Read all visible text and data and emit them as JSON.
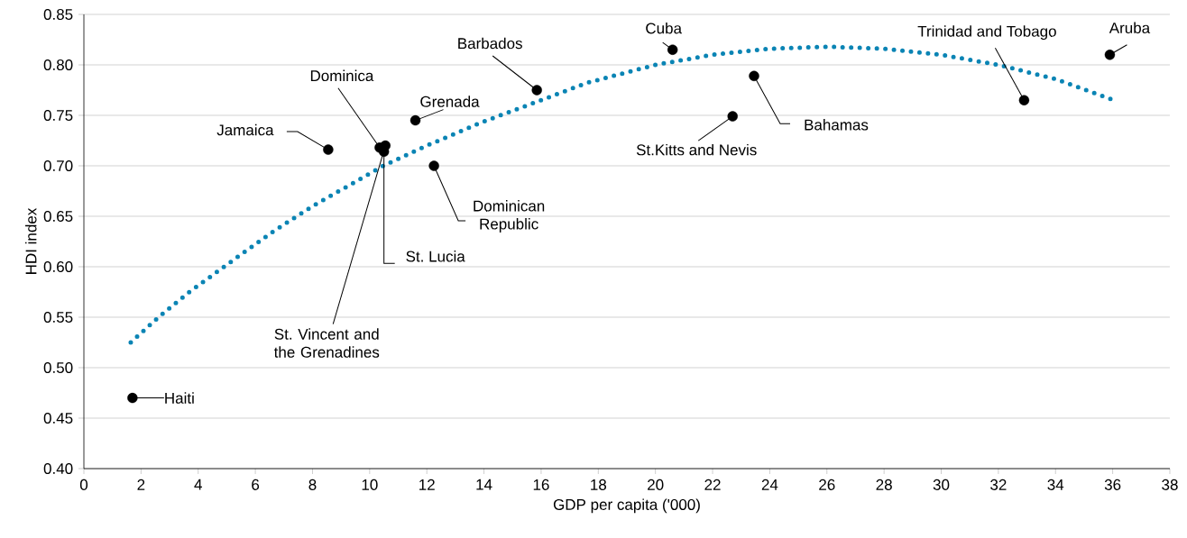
{
  "chart_data": {
    "type": "scatter",
    "xlabel": "GDP per capita ('000)",
    "ylabel": "HDI index",
    "xlim": [
      0,
      38
    ],
    "ylim": [
      0.4,
      0.85
    ],
    "xticks": [
      0,
      2,
      4,
      6,
      8,
      10,
      12,
      14,
      16,
      18,
      20,
      22,
      24,
      26,
      28,
      30,
      32,
      34,
      36,
      38
    ],
    "yticks": [
      {
        "value": 0.4,
        "label": "0.40"
      },
      {
        "value": 0.45,
        "label": "0.45"
      },
      {
        "value": 0.5,
        "label": "0.50"
      },
      {
        "value": 0.55,
        "label": "0.55"
      },
      {
        "value": 0.6,
        "label": "0.60"
      },
      {
        "value": 0.65,
        "label": "0.65"
      },
      {
        "value": 0.7,
        "label": "0.70"
      },
      {
        "value": 0.75,
        "label": "0.75"
      },
      {
        "value": 0.8,
        "label": "0.80"
      },
      {
        "value": 0.85,
        "label": "0.85"
      }
    ],
    "grid": "y",
    "series": [
      {
        "type": "scatter",
        "color": "#000000",
        "marker": "circle",
        "x": [
          1.7,
          8.55,
          10.35,
          10.5,
          10.55,
          11.6,
          12.25,
          15.85,
          20.6,
          22.7,
          23.45,
          32.9,
          35.9
        ],
        "values": [
          0.47,
          0.716,
          0.718,
          0.714,
          0.72,
          0.745,
          0.7,
          0.775,
          0.815,
          0.749,
          0.789,
          0.765,
          0.81
        ]
      },
      {
        "type": "line",
        "color": "#0a84b4",
        "line_style": "dotted",
        "x": [
          1.64,
          2.65,
          3.69,
          5.49,
          6.63,
          8,
          10.48,
          12,
          14,
          16,
          17.58,
          20,
          22,
          24,
          26,
          28,
          30,
          32,
          34,
          35.95
        ],
        "values": [
          0.525,
          0.551,
          0.575,
          0.612,
          0.635,
          0.66,
          0.7,
          0.72,
          0.744,
          0.765,
          0.782,
          0.8,
          0.81,
          0.816,
          0.818,
          0.816,
          0.81,
          0.8,
          0.786,
          0.766
        ]
      }
    ],
    "annotations": [
      {
        "text": "Haiti",
        "x": 1.7,
        "y": 0.47
      },
      {
        "text": "Jamaica",
        "x": 8.55,
        "y": 0.716
      },
      {
        "text": "Dominica",
        "x": 10.35,
        "y": 0.718
      },
      {
        "text": "St. Lucia",
        "x": 10.5,
        "y": 0.714
      },
      {
        "text": "St. Vincent and the Grenadines",
        "x": 10.55,
        "y": 0.72
      },
      {
        "text": "Grenada",
        "x": 11.6,
        "y": 0.745
      },
      {
        "text": "Dominican Republic",
        "x": 12.25,
        "y": 0.7
      },
      {
        "text": "Barbados",
        "x": 15.85,
        "y": 0.775
      },
      {
        "text": "Cuba",
        "x": 20.6,
        "y": 0.815
      },
      {
        "text": "St.Kitts and Nevis",
        "x": 22.7,
        "y": 0.749
      },
      {
        "text": "Bahamas",
        "x": 23.45,
        "y": 0.789
      },
      {
        "text": "Trinidad and Tobago",
        "x": 32.9,
        "y": 0.765
      },
      {
        "text": "Aruba",
        "x": 35.9,
        "y": 0.81
      }
    ]
  }
}
